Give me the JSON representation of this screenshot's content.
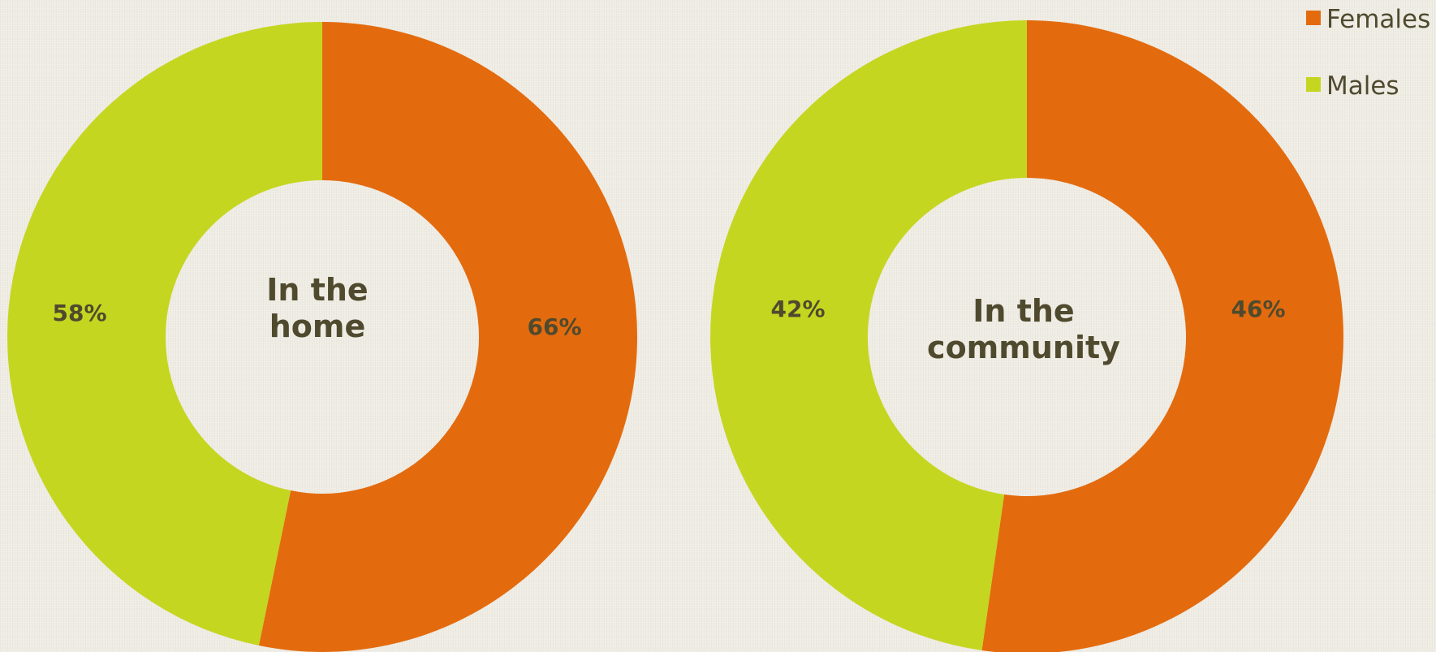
{
  "colors": {
    "Females": "#e36b0e",
    "Males": "#c5d620",
    "text": "#4f4a2e"
  },
  "chart_data": [
    {
      "type": "pie",
      "subtype": "donut",
      "center_label": [
        "In the",
        "home"
      ],
      "series": [
        {
          "name": "Females",
          "value": 66,
          "label": "66%"
        },
        {
          "name": "Males",
          "value": 58,
          "label": "58%"
        }
      ]
    },
    {
      "type": "pie",
      "subtype": "donut",
      "center_label": [
        "In the",
        "community"
      ],
      "series": [
        {
          "name": "Females",
          "value": 46,
          "label": "46%"
        },
        {
          "name": "Males",
          "value": 42,
          "label": "42%"
        }
      ]
    }
  ],
  "legend": {
    "position": "top-right",
    "items": [
      {
        "label": "Females",
        "color": "#e36b0e"
      },
      {
        "label": "Males",
        "color": "#c5d620"
      }
    ]
  }
}
